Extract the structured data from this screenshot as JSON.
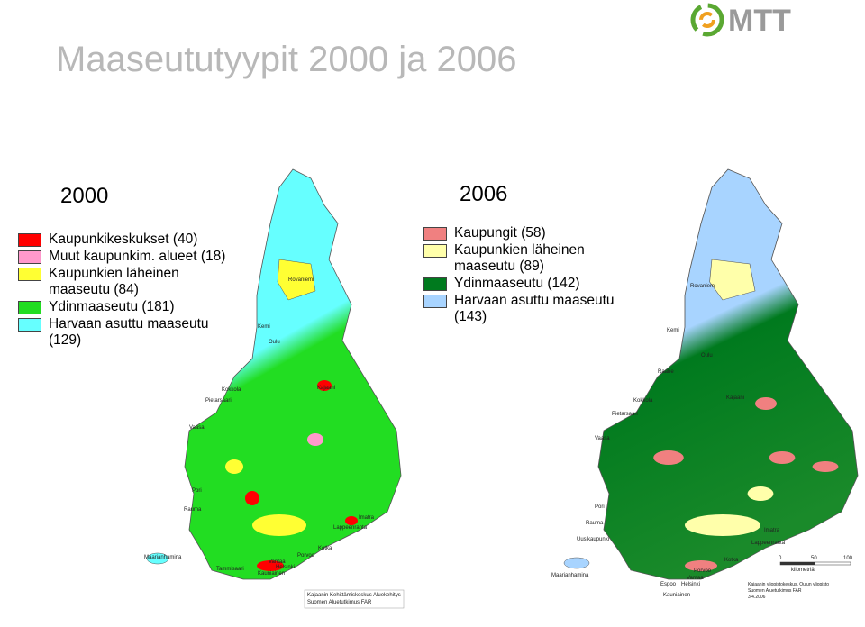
{
  "header": {
    "title": "Maaseututyypit 2000 ja 2006",
    "logo": "MTT"
  },
  "maps": [
    {
      "year": "2000",
      "legend": [
        {
          "label": "Kaupunkikeskukset (40)",
          "color": "#ff0000"
        },
        {
          "label": "Muut kaupunkim. alueet (18)",
          "color": "#ff99cc"
        },
        {
          "label": "Kaupunkien läheinen maaseutu (84)",
          "color": "#ffff33"
        },
        {
          "label": "Ydinmaaseutu (181)",
          "color": "#22dd22"
        },
        {
          "label": "Harvaan asuttu maaseutu (129)",
          "color": "#66ffff"
        }
      ],
      "places": [
        "Rovaniemi",
        "Kemi",
        "Oulu",
        "Kokkola",
        "Pietarsaari",
        "Kajaani",
        "Vaasa",
        "Pori",
        "Rauma",
        "Imatra",
        "Lappeenranta",
        "Kotka",
        "Porvoo",
        "Vantaa",
        "Helsinki",
        "Kauniainen",
        "Tammisaari",
        "Maarianhamina"
      ],
      "credit": [
        "Kajaanin Kehittämiskeskus Aluekehitys",
        "Suomen Aluetutkimus FAR"
      ]
    },
    {
      "year": "2006",
      "legend": [
        {
          "label": "Kaupungit (58)",
          "color": "#f08080"
        },
        {
          "label": "Kaupunkien läheinen maaseutu (89)",
          "color": "#ffffaa"
        },
        {
          "label": "Ydinmaaseutu (142)",
          "color": "#007a1e"
        },
        {
          "label": "Harvaan asuttu maaseutu (143)",
          "color": "#a8d4ff"
        }
      ],
      "places": [
        "Rovaniemi",
        "Kemi",
        "Oulu",
        "Raahe",
        "Kokkola",
        "Pietarsaari",
        "Kajaani",
        "Vaasa",
        "Pori",
        "Rauma",
        "Uusikaupunki",
        "Imatra",
        "Lappeenranta",
        "Kotka",
        "Porvoo",
        "Vantaa",
        "Espoo",
        "Helsinki",
        "Kauniainen",
        "Maarianhamina"
      ],
      "scale": [
        "0",
        "50",
        "100",
        "kilometriä"
      ],
      "credit": [
        "Kajaanin yliopistokeskus, Oulun yliopisto",
        "Suomen Aluetutkimus FAR",
        "3.4.2006"
      ]
    }
  ]
}
